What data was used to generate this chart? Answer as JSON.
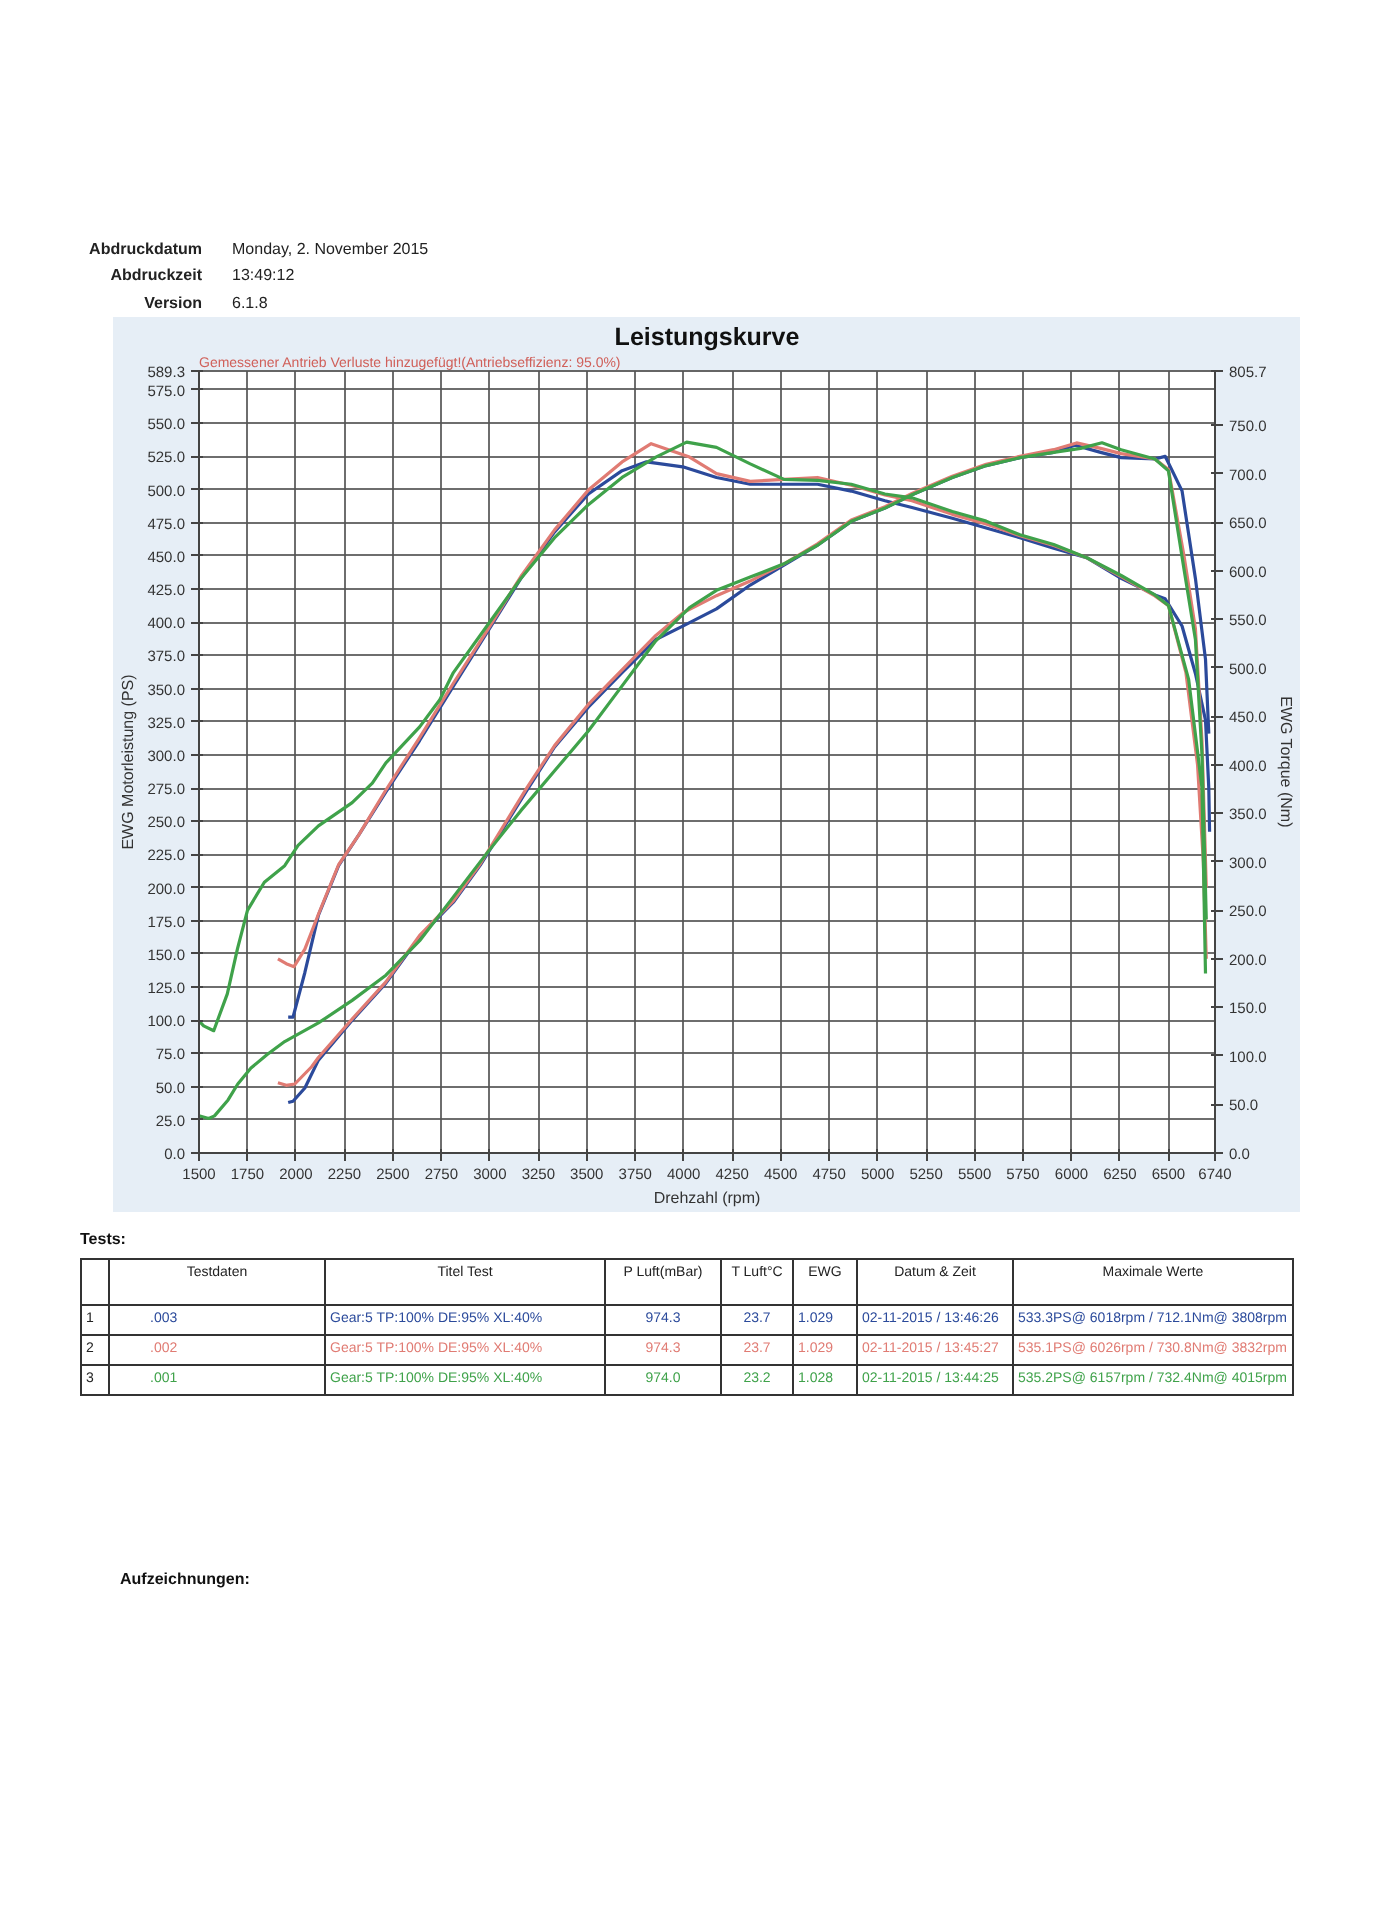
{
  "chart_data": {
    "type": "line",
    "title": "Leistungskurve",
    "subtitle": "Gemessener Antrieb Verluste hinzugefügt!(Antriebseffizienz: 95.0%)",
    "xlabel": "Drehzahl (rpm)",
    "ylabel": "EWG Motorleistung (PS)",
    "y2label": "EWG Torque (Nm)",
    "xlim": [
      1500,
      6740
    ],
    "xticks": [
      1500,
      1750,
      2000,
      2250,
      2500,
      2750,
      3000,
      3250,
      3500,
      3750,
      4000,
      4250,
      4500,
      4750,
      5000,
      5250,
      5500,
      5750,
      6000,
      6250,
      6500,
      6740
    ],
    "ylim": [
      0,
      589.3
    ],
    "yticks": [
      {
        "value": 0,
        "label": "0.0"
      },
      {
        "value": 25,
        "label": "25.0"
      },
      {
        "value": 50,
        "label": "50.0"
      },
      {
        "value": 75,
        "label": "75.0"
      },
      {
        "value": 100,
        "label": "100.0"
      },
      {
        "value": 125,
        "label": "125.0"
      },
      {
        "value": 150,
        "label": "150.0"
      },
      {
        "value": 175,
        "label": "175.0"
      },
      {
        "value": 200,
        "label": "200.0"
      },
      {
        "value": 225,
        "label": "225.0"
      },
      {
        "value": 250,
        "label": "250.0"
      },
      {
        "value": 275,
        "label": "275.0"
      },
      {
        "value": 300,
        "label": "300.0"
      },
      {
        "value": 325,
        "label": "325.0"
      },
      {
        "value": 350,
        "label": "350.0"
      },
      {
        "value": 375,
        "label": "375.0"
      },
      {
        "value": 400,
        "label": "400.0"
      },
      {
        "value": 425,
        "label": "425.0"
      },
      {
        "value": 450,
        "label": "450.0"
      },
      {
        "value": 475,
        "label": "475.0"
      },
      {
        "value": 500,
        "label": "500.0"
      },
      {
        "value": 525,
        "label": "525.0"
      },
      {
        "value": 550,
        "label": "550.0"
      },
      {
        "value": 575,
        "label": "575.0"
      },
      {
        "value": 589.3,
        "label": "589.3"
      }
    ],
    "y2lim": [
      0,
      805.7
    ],
    "y2ticks": [
      {
        "value": 0,
        "label": "0.0"
      },
      {
        "value": 50,
        "label": "50.0"
      },
      {
        "value": 100,
        "label": "100.0"
      },
      {
        "value": 150,
        "label": "150.0"
      },
      {
        "value": 200,
        "label": "200.0"
      },
      {
        "value": 250,
        "label": "250.0"
      },
      {
        "value": 300,
        "label": "300.0"
      },
      {
        "value": 350,
        "label": "350.0"
      },
      {
        "value": 400,
        "label": "400.0"
      },
      {
        "value": 450,
        "label": "450.0"
      },
      {
        "value": 500,
        "label": "500.0"
      },
      {
        "value": 550,
        "label": "550.0"
      },
      {
        "value": 600,
        "label": "600.0"
      },
      {
        "value": 650,
        "label": "650.0"
      },
      {
        "value": 700,
        "label": "700.0"
      },
      {
        "value": 750,
        "label": "750.0"
      },
      {
        "value": 805.7,
        "label": "805.7"
      }
    ],
    "grid": true,
    "series": [
      {
        "color": "#2b4a9b",
        "x": [
          1960,
          1985,
          2046,
          2116,
          2290,
          2464,
          2638,
          2812,
          2951,
          3190,
          3334,
          3508,
          3682,
          3856,
          3995,
          4169,
          4343,
          4517,
          4690,
          4864,
          5038,
          5177,
          5385,
          5560,
          5734,
          5908,
          6018,
          6150,
          6256,
          6430,
          6483,
          6570,
          6639,
          6691,
          6708
        ],
        "values": [
          38,
          39,
          49,
          70,
          100,
          128,
          163,
          189,
          217,
          273,
          306,
          336,
          362,
          387,
          397,
          410,
          428,
          443,
          458,
          476,
          486,
          496,
          509,
          518,
          524,
          528,
          533.3,
          528,
          524,
          523,
          525,
          499,
          433,
          372,
          316
        ]
      },
      {
        "color": "#2b4a9b",
        "axis": "y2",
        "x": [
          1960,
          1985,
          2046,
          2116,
          2220,
          2325,
          2464,
          2638,
          2812,
          2985,
          3160,
          3334,
          3508,
          3682,
          3808,
          3995,
          4169,
          4343,
          4517,
          4690,
          4864,
          5038,
          5177,
          5385,
          5560,
          5734,
          5908,
          6082,
          6256,
          6430,
          6483,
          6570,
          6639,
          6691,
          6708,
          6712
        ],
        "values": [
          140,
          140,
          186,
          245,
          296,
          328,
          372,
          425,
          481,
          536,
          592,
          640,
          679,
          703,
          712.1,
          707,
          696,
          689,
          689,
          689,
          682,
          672,
          665,
          654,
          644,
          634,
          623,
          613,
          592,
          575,
          571,
          543,
          494,
          446,
          376,
          331
        ]
      },
      {
        "color": "#e07b73",
        "x": [
          1907,
          1950,
          1994,
          2081,
          2116,
          2290,
          2464,
          2638,
          2812,
          2951,
          3190,
          3334,
          3508,
          3682,
          3856,
          3995,
          4169,
          4343,
          4517,
          4690,
          4864,
          5038,
          5177,
          5385,
          5560,
          5734,
          5908,
          6026,
          6150,
          6256,
          6430,
          6500,
          6580,
          6639,
          6673,
          6695
        ],
        "values": [
          53,
          51,
          52,
          65,
          72,
          101,
          129,
          164,
          190,
          218,
          275,
          307,
          338,
          364,
          390,
          407,
          420,
          431,
          444,
          459,
          477,
          487,
          497,
          510,
          519,
          525,
          530,
          535.1,
          531,
          527,
          523,
          515,
          450,
          395,
          310,
          200
        ]
      },
      {
        "color": "#e07b73",
        "axis": "y2",
        "x": [
          1907,
          1950,
          1990,
          2046,
          2116,
          2220,
          2325,
          2464,
          2638,
          2812,
          2985,
          3160,
          3334,
          3508,
          3682,
          3832,
          4030,
          4169,
          4343,
          4517,
          4690,
          4864,
          5038,
          5177,
          5385,
          5560,
          5734,
          5908,
          6082,
          6256,
          6430,
          6500,
          6590,
          6650,
          6680,
          6695
        ],
        "values": [
          200,
          195,
          192,
          210,
          246,
          297,
          328,
          374,
          428,
          484,
          538,
          594,
          642,
          683,
          712,
          730.8,
          717,
          700,
          692,
          694,
          696,
          688,
          678,
          672,
          658,
          648,
          636,
          626,
          613,
          594,
          574,
          564,
          495,
          400,
          300,
          200
        ]
      },
      {
        "color": "#3fa24a",
        "x": [
          1500,
          1550,
          1580,
          1650,
          1700,
          1768,
          1850,
          1942,
          2116,
          2290,
          2464,
          2638,
          2812,
          2985,
          3160,
          3334,
          3508,
          3682,
          3856,
          4030,
          4169,
          4343,
          4517,
          4690,
          4864,
          5038,
          5177,
          5385,
          5560,
          5734,
          5908,
          6047,
          6157,
          6256,
          6430,
          6500,
          6580,
          6639,
          6673,
          6695
        ],
        "values": [
          28,
          26,
          28,
          40,
          52,
          64,
          74,
          84,
          98,
          115,
          134,
          160,
          193,
          226,
          258,
          288,
          318,
          352,
          386,
          411,
          424,
          434,
          444,
          458,
          476,
          486,
          496,
          509,
          518,
          524,
          528,
          531,
          535.2,
          530,
          523,
          514,
          440,
          387,
          300,
          176
        ]
      },
      {
        "color": "#3fa24a",
        "axis": "y2",
        "x": [
          1500,
          1524,
          1576,
          1646,
          1698,
          1750,
          1837,
          1942,
          2011,
          2116,
          2290,
          2394,
          2464,
          2638,
          2742,
          2812,
          2985,
          3160,
          3334,
          3508,
          3682,
          3856,
          4015,
          4169,
          4343,
          4517,
          4690,
          4864,
          5038,
          5177,
          5385,
          5560,
          5734,
          5908,
          6082,
          6256,
          6430,
          6500,
          6604,
          6673,
          6691
        ],
        "values": [
          136,
          131,
          126,
          164,
          210,
          250,
          279,
          296,
          317,
          337,
          361,
          381,
          402,
          439,
          467,
          495,
          543,
          592,
          634,
          668,
          696,
          717,
          732.4,
          727,
          710,
          694,
          693,
          689,
          679,
          675,
          661,
          651,
          637,
          627,
          613,
          595,
          575,
          564,
          488,
          376,
          185
        ]
      }
    ],
    "annotations": [
      "Abdruckdatum",
      "Monday, 2. November 2015",
      "Abdruckzeit",
      "13:49:12",
      "Version",
      "6.1.8",
      "Tests:",
      "Testdaten",
      "Titel Test",
      "P Luft(mBar)",
      "T Luft°C",
      "EWG",
      "Datum & Zeit",
      "Maximale Werte",
      "1",
      ".003",
      "Gear:5 TP:100% DE:95% XL:40%",
      "974.3",
      "23.7",
      "1.029",
      "02-11-2015 / 13:46:26",
      "533.3PS@ 6018rpm / 712.1Nm@ 3808rpm",
      "2",
      ".002",
      "Gear:5 TP:100% DE:95% XL:40%",
      "974.3",
      "23.7",
      "1.029",
      "02-11-2015 / 13:45:27",
      "535.1PS@ 6026rpm / 730.8Nm@ 3832rpm",
      "3",
      ".001",
      "Gear:5 TP:100% DE:95% XL:40%",
      "974.0",
      "23.2",
      "1.028",
      "02-11-2015 / 13:44:25",
      "535.2PS@ 6157rpm / 732.4Nm@ 4015rpm",
      "Aufzeichnungen:"
    ]
  }
}
